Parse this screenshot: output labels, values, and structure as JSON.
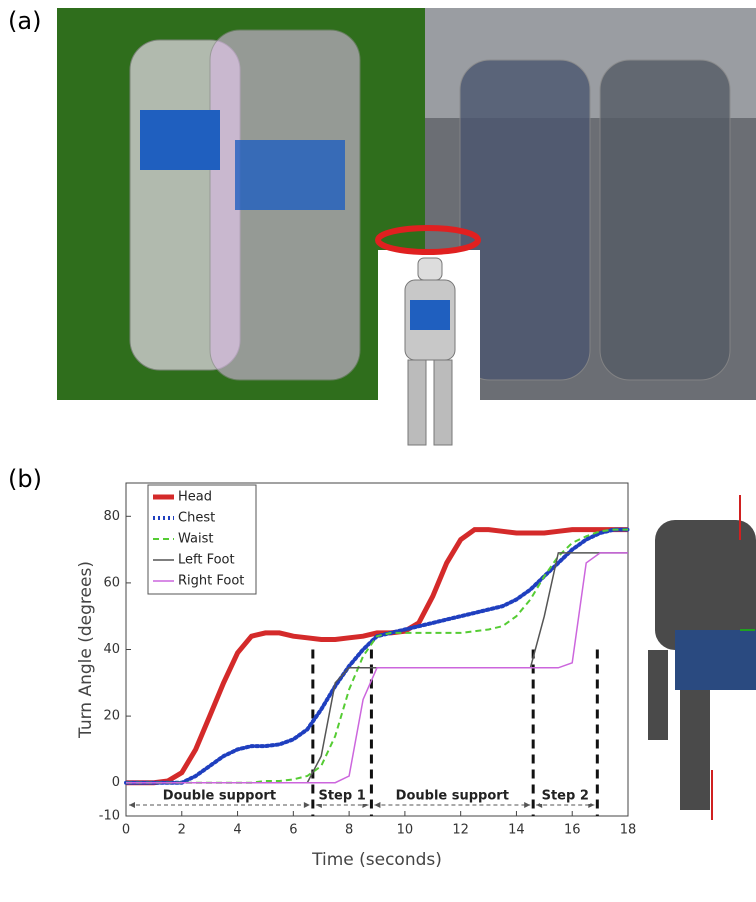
{
  "panel_a_label": "(a)",
  "panel_b_label": "(b)",
  "chart_data": {
    "type": "line",
    "x_label": "Time (seconds)",
    "y_label": "Turn Angle (degrees)",
    "xlim": [
      0,
      18
    ],
    "ylim": [
      -10,
      90
    ],
    "xticks": [
      0,
      2,
      4,
      6,
      8,
      10,
      12,
      14,
      16,
      18
    ],
    "yticks": [
      -10,
      0,
      20,
      40,
      60,
      80
    ],
    "legend": "top-left",
    "x": [
      0,
      0.5,
      1,
      1.5,
      2,
      2.5,
      3,
      3.5,
      4,
      4.5,
      5,
      5.5,
      6,
      6.5,
      7,
      7.5,
      8,
      8.5,
      9,
      9.5,
      10,
      10.5,
      11,
      11.5,
      12,
      12.5,
      13,
      13.5,
      14,
      14.5,
      15,
      15.5,
      16,
      16.5,
      17,
      17.5,
      18
    ],
    "series": [
      {
        "name": "Head",
        "color": "#d42a2a",
        "width": 5,
        "dash": "solid",
        "values": [
          0,
          0,
          0,
          0.5,
          3,
          10,
          20,
          30,
          39,
          44,
          45,
          45,
          44,
          43.5,
          43,
          43,
          43.5,
          44,
          45,
          45,
          45.5,
          48,
          56,
          66,
          73,
          76,
          76,
          75.5,
          75,
          75,
          75,
          75.5,
          76,
          76,
          76,
          76,
          76
        ]
      },
      {
        "name": "Chest",
        "color": "#1f3fbf",
        "width": 4,
        "dash": "dotted",
        "values": [
          0,
          0,
          0,
          0,
          0,
          2,
          5,
          8,
          10,
          11,
          11,
          11.5,
          13,
          16,
          22,
          29,
          35,
          40,
          44,
          45,
          46,
          47,
          48,
          49,
          50,
          51,
          52,
          53,
          55,
          58,
          62,
          66,
          70,
          73,
          75,
          76,
          76
        ]
      },
      {
        "name": "Waist",
        "color": "#55cc33",
        "width": 2,
        "dash": "dashed",
        "values": [
          0,
          0,
          0,
          0,
          0,
          0,
          0,
          0,
          0,
          0,
          0.5,
          0.5,
          1,
          2,
          5,
          14,
          28,
          38,
          44,
          45,
          45,
          45,
          45,
          45,
          45,
          45.5,
          46,
          47,
          50,
          55,
          62,
          68,
          72,
          74,
          75.5,
          76,
          76
        ]
      },
      {
        "name": "Left Foot",
        "color": "#555555",
        "width": 1.5,
        "dash": "solid",
        "values": [
          0,
          0,
          0,
          0,
          0,
          0,
          0,
          0,
          0,
          0,
          0,
          0,
          0,
          0,
          8,
          30,
          34.5,
          34.5,
          34.5,
          34.5,
          34.5,
          34.5,
          34.5,
          34.5,
          34.5,
          34.5,
          34.5,
          34.5,
          34.5,
          34.5,
          50,
          69,
          69,
          69,
          69,
          69,
          69
        ]
      },
      {
        "name": "Right Foot",
        "color": "#cc66dd",
        "width": 1.5,
        "dash": "solid",
        "values": [
          0,
          0,
          0,
          0,
          0,
          0,
          0,
          0,
          0,
          0,
          0,
          0,
          0,
          0,
          0,
          0,
          2,
          25,
          34.5,
          34.5,
          34.5,
          34.5,
          34.5,
          34.5,
          34.5,
          34.5,
          34.5,
          34.5,
          34.5,
          34.5,
          34.5,
          34.5,
          36,
          66,
          69,
          69,
          69
        ]
      }
    ],
    "phases": [
      {
        "label": "Double support",
        "start": 0,
        "end": 6.7
      },
      {
        "label": "Step 1",
        "start": 6.7,
        "end": 8.8
      },
      {
        "label": "Double support",
        "start": 8.8,
        "end": 14.6
      },
      {
        "label": "Step 2",
        "start": 14.6,
        "end": 16.9
      }
    ]
  }
}
